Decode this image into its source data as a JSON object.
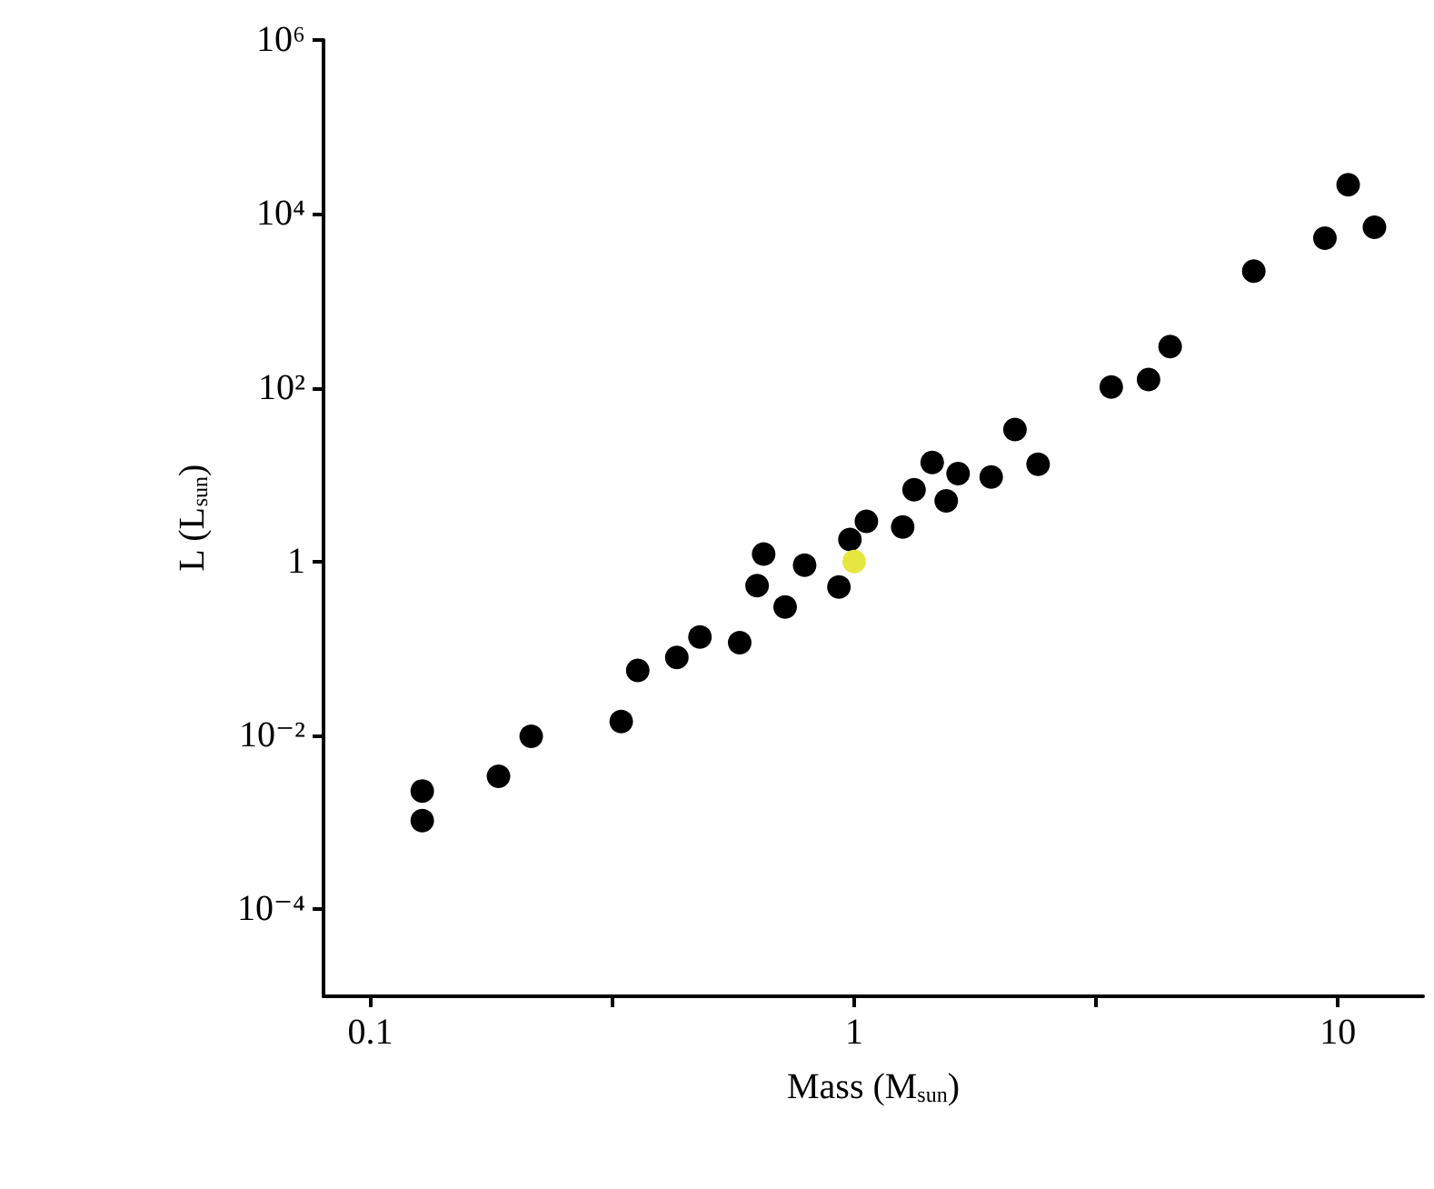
{
  "chart_data": {
    "type": "scatter",
    "xlabel": "Mass (M$_{sun}$)",
    "ylabel": "L (L$_{sun}$)",
    "log": "xy",
    "grid": false,
    "marker": "circle",
    "xlim": [
      0.08,
      15
    ],
    "xticks": [
      0.1,
      {
        "value": 0.3162,
        "label": null
      },
      1,
      {
        "value": 3.162,
        "label": null
      },
      10
    ],
    "ylim": [
      1e-05,
      1000000
    ],
    "yticks": [
      {
        "value": 0.0001,
        "label": "10⁻⁴"
      },
      {
        "value": 0.01,
        "label": "10⁻²"
      },
      1,
      {
        "value": 100,
        "label": "10²"
      },
      {
        "value": 10000,
        "label": "10⁴"
      },
      {
        "value": 1000000,
        "label": "10⁶"
      }
    ],
    "series": [
      {
        "color": "#000000",
        "x": [
          0.128,
          0.128,
          0.184,
          0.215,
          0.33,
          0.357,
          0.43,
          0.48,
          0.58,
          0.65,
          0.63,
          0.72,
          0.79,
          0.93,
          0.98,
          1.06,
          1.26,
          1.33,
          1.55,
          1.45,
          1.64,
          1.92,
          2.15,
          2.4,
          3.4,
          4.06,
          4.5,
          6.7,
          9.4,
          10.5,
          11.9
        ],
        "values": [
          0.0023,
          0.00105,
          0.0034,
          0.0098,
          0.0145,
          0.056,
          0.079,
          0.136,
          0.117,
          1.22,
          0.53,
          0.3,
          0.91,
          0.51,
          1.8,
          2.9,
          2.5,
          6.7,
          5,
          13.8,
          10.3,
          9.4,
          33,
          13.2,
          102,
          124,
          297,
          2200,
          5250,
          21600,
          7000
        ]
      },
      {
        "color": "#e6e640",
        "x": [
          1
        ],
        "values": [
          1
        ]
      }
    ]
  }
}
